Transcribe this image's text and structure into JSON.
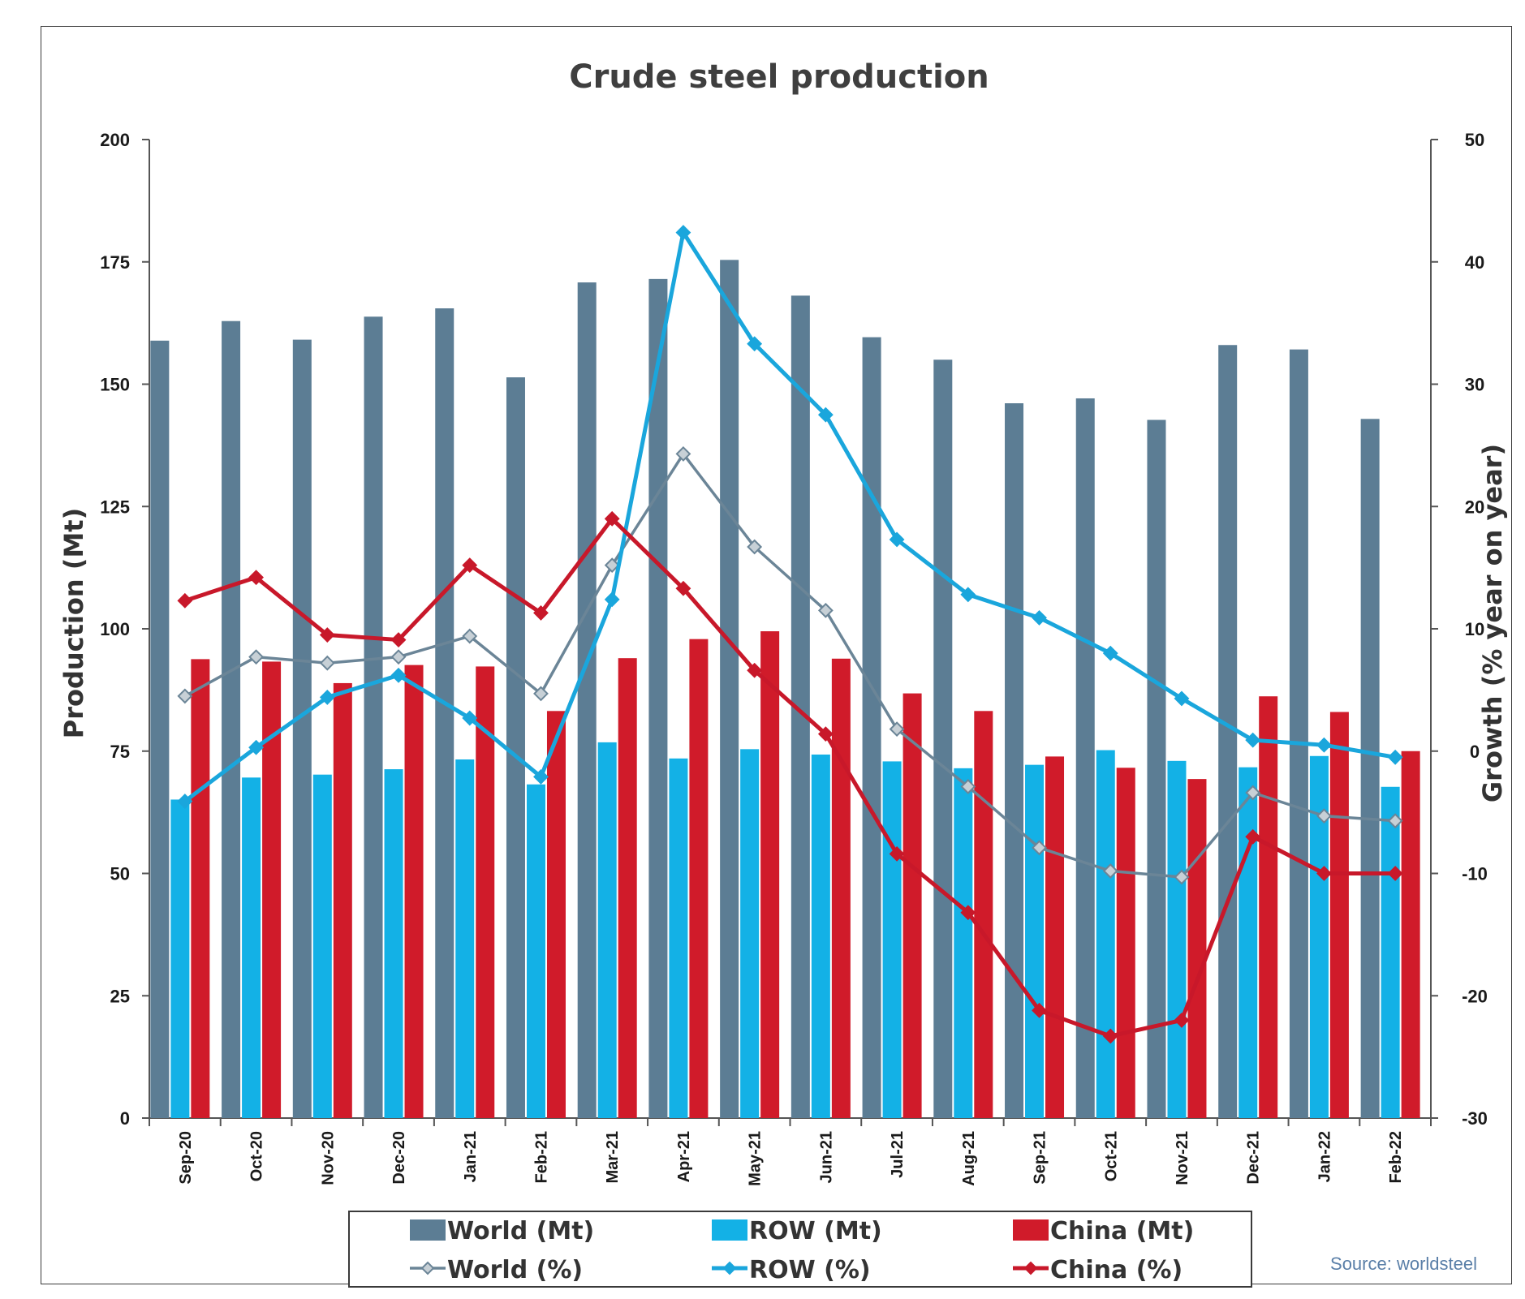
{
  "chart_data": {
    "type": "bar",
    "title": "Crude steel production",
    "ylabel": "Production (Mt)",
    "y2label": "Growth (% year on year)",
    "ylim": [
      0,
      200
    ],
    "y2lim": [
      -30,
      50
    ],
    "yticks": [
      "0",
      "25",
      "50",
      "75",
      "100",
      "125",
      "150",
      "175",
      "200"
    ],
    "y2ticks": [
      "-30",
      "-20",
      "-10",
      "0",
      "10",
      "20",
      "30",
      "40",
      "50"
    ],
    "categories": [
      "Sep-20",
      "Oct-20",
      "Nov-20",
      "Dec-20",
      "Jan-21",
      "Feb-21",
      "Mar-21",
      "Apr-21",
      "May-21",
      "Jun-21",
      "Jul-21",
      "Aug-21",
      "Sep-21",
      "Oct-21",
      "Nov-21",
      "Dec-21",
      "Jan-22",
      "Feb-22"
    ],
    "bar_series": [
      {
        "name": "World (Mt)",
        "color": "#5c7d94",
        "values": [
          158.9,
          162.9,
          159.1,
          163.8,
          165.5,
          151.4,
          170.8,
          171.5,
          175.4,
          168.1,
          159.6,
          155.0,
          146.1,
          147.1,
          142.7,
          158.0,
          157.1,
          142.9
        ]
      },
      {
        "name": "ROW (Mt)",
        "color": "#13b1e6",
        "values": [
          65.1,
          69.6,
          70.2,
          71.3,
          73.3,
          68.2,
          76.8,
          73.5,
          75.4,
          74.3,
          72.9,
          71.5,
          72.2,
          75.2,
          73.0,
          71.7,
          74.0,
          67.7
        ]
      },
      {
        "name": "China (Mt)",
        "color": "#d01b2a",
        "values": [
          93.8,
          93.3,
          88.9,
          92.6,
          92.3,
          83.2,
          94.0,
          97.9,
          99.5,
          93.9,
          86.8,
          83.2,
          73.9,
          71.6,
          69.3,
          86.2,
          83.0,
          75.0
        ]
      }
    ],
    "line_series": [
      {
        "name": "World (%)",
        "color": "#6b8597",
        "values": [
          4.5,
          7.7,
          7.2,
          7.7,
          9.4,
          4.7,
          15.2,
          24.3,
          16.7,
          11.5,
          1.8,
          -2.9,
          -7.9,
          -9.8,
          -10.3,
          -3.4,
          -5.3,
          -5.7
        ]
      },
      {
        "name": "ROW (%)",
        "color": "#1aa6dc",
        "values": [
          -4.1,
          0.3,
          4.4,
          6.2,
          2.7,
          -2.1,
          12.4,
          42.4,
          33.3,
          27.5,
          17.3,
          12.8,
          10.9,
          8.0,
          4.3,
          0.9,
          0.5,
          -0.5
        ]
      },
      {
        "name": "China (%)",
        "color": "#c8182a",
        "values": [
          12.3,
          14.2,
          9.5,
          9.1,
          15.2,
          11.3,
          19.0,
          13.3,
          6.6,
          1.4,
          -8.4,
          -13.2,
          -21.2,
          -23.3,
          -22.0,
          -7.0,
          -10.0,
          -10.0
        ]
      }
    ],
    "grid": false,
    "legend_position": "bottom",
    "source": "Source: worldsteel"
  }
}
